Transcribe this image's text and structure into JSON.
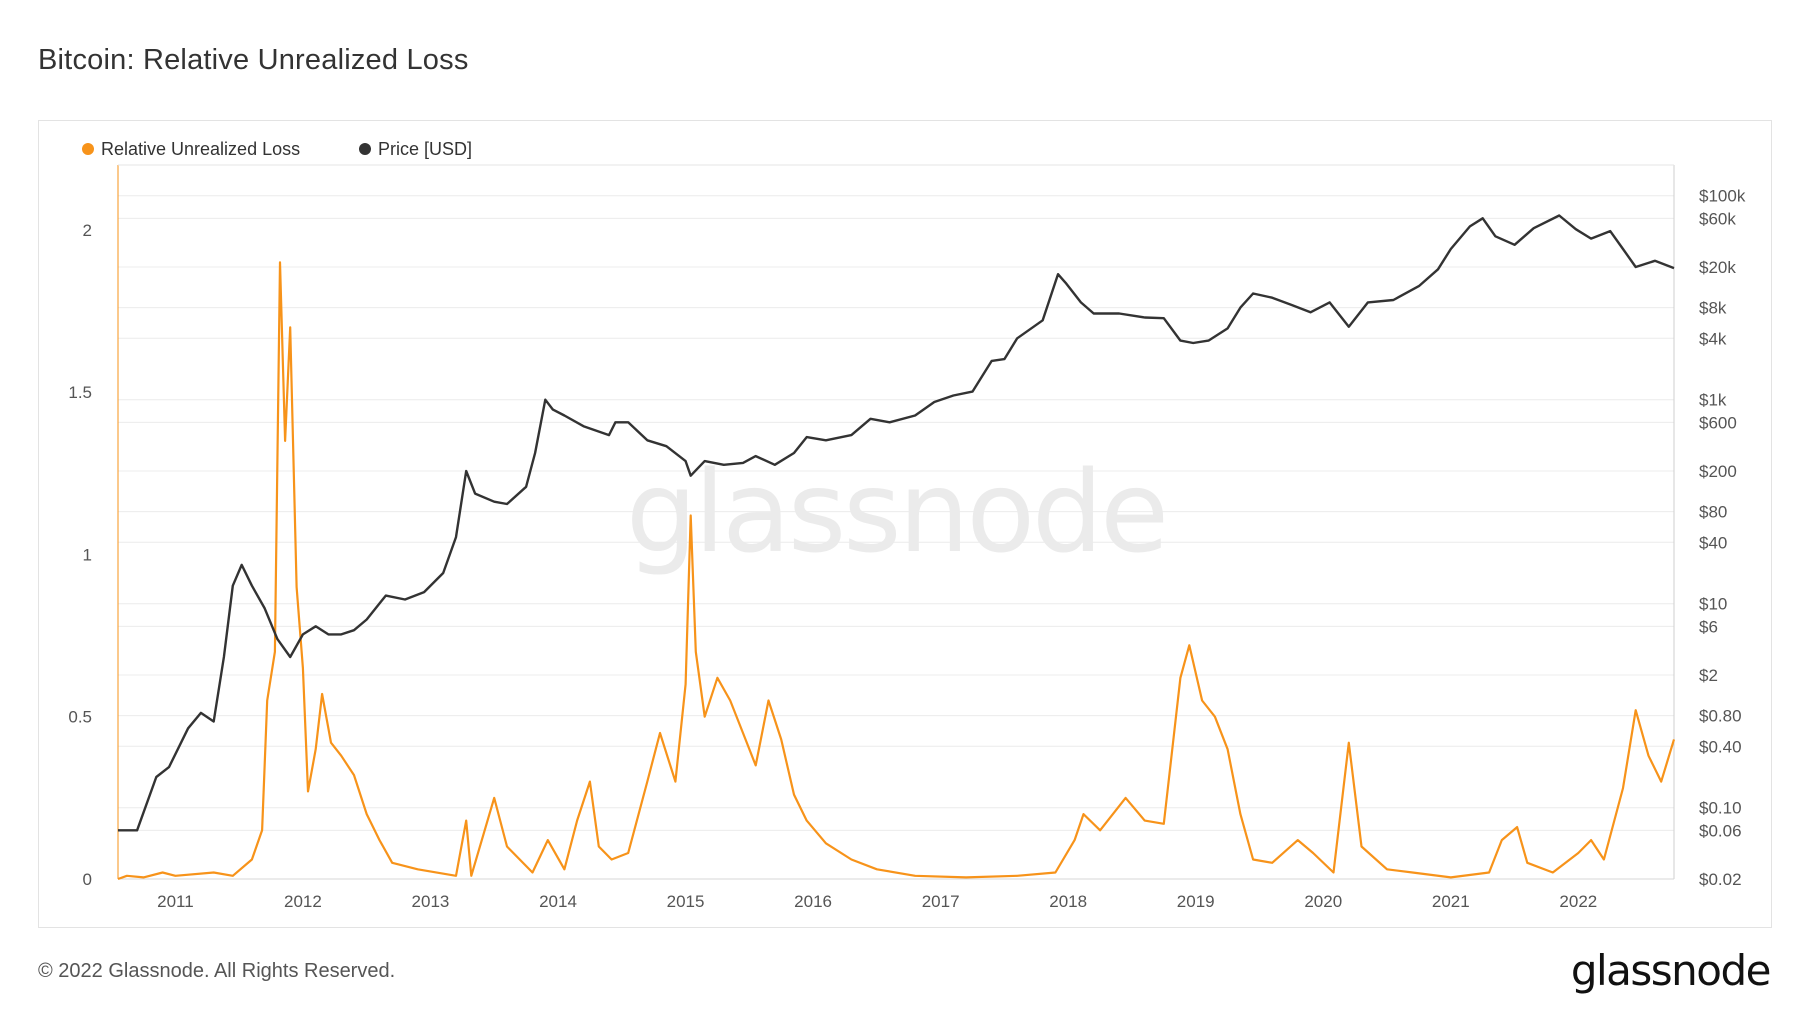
{
  "page": {
    "title": "Bitcoin: Relative Unrealized Loss",
    "copyright": "© 2022 Glassnode. All Rights Reserved.",
    "logo": "glassnode",
    "watermark": "glassnode"
  },
  "colors": {
    "loss": "#f7931a",
    "price": "#333333",
    "grid": "#ececec",
    "axis_text": "#555555",
    "watermark": "#ebebeb"
  },
  "chart_data": {
    "type": "line",
    "title": "Bitcoin: Relative Unrealized Loss",
    "grid": true,
    "legend_placement": "top-left",
    "x_axis": {
      "range": [
        2010.55,
        2022.75
      ],
      "ticks": [
        "2011",
        "2012",
        "2013",
        "2014",
        "2015",
        "2016",
        "2017",
        "2018",
        "2019",
        "2020",
        "2021",
        "2022"
      ],
      "tick_values": [
        2011,
        2012,
        2013,
        2014,
        2015,
        2016,
        2017,
        2018,
        2019,
        2020,
        2021,
        2022
      ]
    },
    "y_axis_left": {
      "range": [
        0,
        2.2
      ],
      "ticks": [
        "0",
        "0.5",
        "1",
        "1.5",
        "2"
      ],
      "tick_values": [
        0,
        0.5,
        1,
        1.5,
        2
      ]
    },
    "y_axis_right": {
      "scale": "log",
      "range": [
        0.02,
        200000
      ],
      "ticks": [
        "$0.02",
        "$0.06",
        "$0.10",
        "$0.40",
        "$0.80",
        "$2",
        "$6",
        "$10",
        "$40",
        "$80",
        "$200",
        "$600",
        "$1k",
        "$4k",
        "$8k",
        "$20k",
        "$60k",
        "$100k"
      ],
      "tick_values": [
        0.02,
        0.06,
        0.1,
        0.4,
        0.8,
        2,
        6,
        10,
        40,
        80,
        200,
        600,
        1000,
        4000,
        8000,
        20000,
        60000,
        100000
      ]
    },
    "series": [
      {
        "name": "Relative Unrealized Loss",
        "axis": "left",
        "points": [
          [
            2010.55,
            0.0
          ],
          [
            2010.62,
            0.01
          ],
          [
            2010.75,
            0.005
          ],
          [
            2010.9,
            0.02
          ],
          [
            2011.0,
            0.01
          ],
          [
            2011.3,
            0.02
          ],
          [
            2011.45,
            0.01
          ],
          [
            2011.6,
            0.06
          ],
          [
            2011.68,
            0.15
          ],
          [
            2011.72,
            0.55
          ],
          [
            2011.78,
            0.7
          ],
          [
            2011.82,
            1.9
          ],
          [
            2011.86,
            1.35
          ],
          [
            2011.9,
            1.7
          ],
          [
            2011.95,
            0.9
          ],
          [
            2012.0,
            0.65
          ],
          [
            2012.04,
            0.27
          ],
          [
            2012.1,
            0.4
          ],
          [
            2012.15,
            0.57
          ],
          [
            2012.22,
            0.42
          ],
          [
            2012.3,
            0.38
          ],
          [
            2012.4,
            0.32
          ],
          [
            2012.5,
            0.2
          ],
          [
            2012.6,
            0.12
          ],
          [
            2012.7,
            0.05
          ],
          [
            2012.9,
            0.03
          ],
          [
            2013.2,
            0.01
          ],
          [
            2013.28,
            0.18
          ],
          [
            2013.32,
            0.01
          ],
          [
            2013.5,
            0.25
          ],
          [
            2013.6,
            0.1
          ],
          [
            2013.8,
            0.02
          ],
          [
            2013.92,
            0.12
          ],
          [
            2014.05,
            0.03
          ],
          [
            2014.15,
            0.18
          ],
          [
            2014.25,
            0.3
          ],
          [
            2014.32,
            0.1
          ],
          [
            2014.42,
            0.06
          ],
          [
            2014.55,
            0.08
          ],
          [
            2014.7,
            0.3
          ],
          [
            2014.8,
            0.45
          ],
          [
            2014.92,
            0.3
          ],
          [
            2015.0,
            0.6
          ],
          [
            2015.04,
            1.12
          ],
          [
            2015.08,
            0.7
          ],
          [
            2015.15,
            0.5
          ],
          [
            2015.25,
            0.62
          ],
          [
            2015.35,
            0.55
          ],
          [
            2015.45,
            0.45
          ],
          [
            2015.55,
            0.35
          ],
          [
            2015.65,
            0.55
          ],
          [
            2015.75,
            0.43
          ],
          [
            2015.85,
            0.26
          ],
          [
            2015.95,
            0.18
          ],
          [
            2016.1,
            0.11
          ],
          [
            2016.3,
            0.06
          ],
          [
            2016.5,
            0.03
          ],
          [
            2016.8,
            0.01
          ],
          [
            2017.2,
            0.005
          ],
          [
            2017.6,
            0.01
          ],
          [
            2017.9,
            0.02
          ],
          [
            2018.05,
            0.12
          ],
          [
            2018.12,
            0.2
          ],
          [
            2018.25,
            0.15
          ],
          [
            2018.45,
            0.25
          ],
          [
            2018.6,
            0.18
          ],
          [
            2018.75,
            0.17
          ],
          [
            2018.88,
            0.62
          ],
          [
            2018.95,
            0.72
          ],
          [
            2019.05,
            0.55
          ],
          [
            2019.15,
            0.5
          ],
          [
            2019.25,
            0.4
          ],
          [
            2019.35,
            0.2
          ],
          [
            2019.45,
            0.06
          ],
          [
            2019.6,
            0.05
          ],
          [
            2019.8,
            0.12
          ],
          [
            2019.92,
            0.08
          ],
          [
            2020.08,
            0.02
          ],
          [
            2020.2,
            0.42
          ],
          [
            2020.3,
            0.1
          ],
          [
            2020.5,
            0.03
          ],
          [
            2020.7,
            0.02
          ],
          [
            2021.0,
            0.005
          ],
          [
            2021.3,
            0.02
          ],
          [
            2021.4,
            0.12
          ],
          [
            2021.52,
            0.16
          ],
          [
            2021.6,
            0.05
          ],
          [
            2021.8,
            0.02
          ],
          [
            2022.0,
            0.08
          ],
          [
            2022.1,
            0.12
          ],
          [
            2022.2,
            0.06
          ],
          [
            2022.35,
            0.28
          ],
          [
            2022.45,
            0.52
          ],
          [
            2022.55,
            0.38
          ],
          [
            2022.65,
            0.3
          ],
          [
            2022.75,
            0.43
          ]
        ]
      },
      {
        "name": "Price [USD]",
        "axis": "right",
        "points": [
          [
            2010.55,
            0.06
          ],
          [
            2010.7,
            0.06
          ],
          [
            2010.85,
            0.2
          ],
          [
            2010.95,
            0.25
          ],
          [
            2011.1,
            0.6
          ],
          [
            2011.2,
            0.85
          ],
          [
            2011.3,
            0.7
          ],
          [
            2011.38,
            3
          ],
          [
            2011.45,
            15
          ],
          [
            2011.52,
            24
          ],
          [
            2011.6,
            15
          ],
          [
            2011.7,
            9
          ],
          [
            2011.8,
            4.5
          ],
          [
            2011.9,
            3
          ],
          [
            2012.0,
            5
          ],
          [
            2012.1,
            6
          ],
          [
            2012.2,
            5
          ],
          [
            2012.3,
            5
          ],
          [
            2012.4,
            5.5
          ],
          [
            2012.5,
            7
          ],
          [
            2012.65,
            12
          ],
          [
            2012.8,
            11
          ],
          [
            2012.95,
            13
          ],
          [
            2013.1,
            20
          ],
          [
            2013.2,
            45
          ],
          [
            2013.28,
            200
          ],
          [
            2013.35,
            120
          ],
          [
            2013.5,
            100
          ],
          [
            2013.6,
            95
          ],
          [
            2013.75,
            140
          ],
          [
            2013.82,
            300
          ],
          [
            2013.9,
            1000
          ],
          [
            2013.96,
            800
          ],
          [
            2014.05,
            700
          ],
          [
            2014.2,
            550
          ],
          [
            2014.4,
            450
          ],
          [
            2014.45,
            600
          ],
          [
            2014.55,
            600
          ],
          [
            2014.7,
            400
          ],
          [
            2014.85,
            350
          ],
          [
            2015.0,
            250
          ],
          [
            2015.04,
            180
          ],
          [
            2015.15,
            250
          ],
          [
            2015.3,
            230
          ],
          [
            2015.45,
            240
          ],
          [
            2015.55,
            280
          ],
          [
            2015.7,
            230
          ],
          [
            2015.85,
            300
          ],
          [
            2015.95,
            430
          ],
          [
            2016.1,
            400
          ],
          [
            2016.3,
            450
          ],
          [
            2016.45,
            650
          ],
          [
            2016.6,
            600
          ],
          [
            2016.8,
            700
          ],
          [
            2016.95,
            950
          ],
          [
            2017.1,
            1100
          ],
          [
            2017.25,
            1200
          ],
          [
            2017.4,
            2400
          ],
          [
            2017.5,
            2500
          ],
          [
            2017.6,
            4000
          ],
          [
            2017.8,
            6000
          ],
          [
            2017.92,
            17000
          ],
          [
            2017.98,
            14000
          ],
          [
            2018.1,
            9000
          ],
          [
            2018.2,
            7000
          ],
          [
            2018.4,
            7000
          ],
          [
            2018.6,
            6400
          ],
          [
            2018.75,
            6300
          ],
          [
            2018.88,
            3800
          ],
          [
            2018.98,
            3600
          ],
          [
            2019.1,
            3800
          ],
          [
            2019.25,
            5000
          ],
          [
            2019.35,
            8000
          ],
          [
            2019.45,
            11000
          ],
          [
            2019.6,
            10000
          ],
          [
            2019.75,
            8500
          ],
          [
            2019.9,
            7200
          ],
          [
            2020.05,
            9000
          ],
          [
            2020.2,
            5200
          ],
          [
            2020.35,
            9000
          ],
          [
            2020.55,
            9500
          ],
          [
            2020.75,
            13000
          ],
          [
            2020.9,
            19000
          ],
          [
            2021.0,
            30000
          ],
          [
            2021.15,
            50000
          ],
          [
            2021.25,
            60000
          ],
          [
            2021.35,
            40000
          ],
          [
            2021.5,
            33000
          ],
          [
            2021.65,
            48000
          ],
          [
            2021.85,
            64000
          ],
          [
            2021.98,
            47000
          ],
          [
            2022.1,
            38000
          ],
          [
            2022.25,
            45000
          ],
          [
            2022.35,
            30000
          ],
          [
            2022.45,
            20000
          ],
          [
            2022.6,
            23000
          ],
          [
            2022.75,
            19500
          ]
        ]
      }
    ]
  }
}
